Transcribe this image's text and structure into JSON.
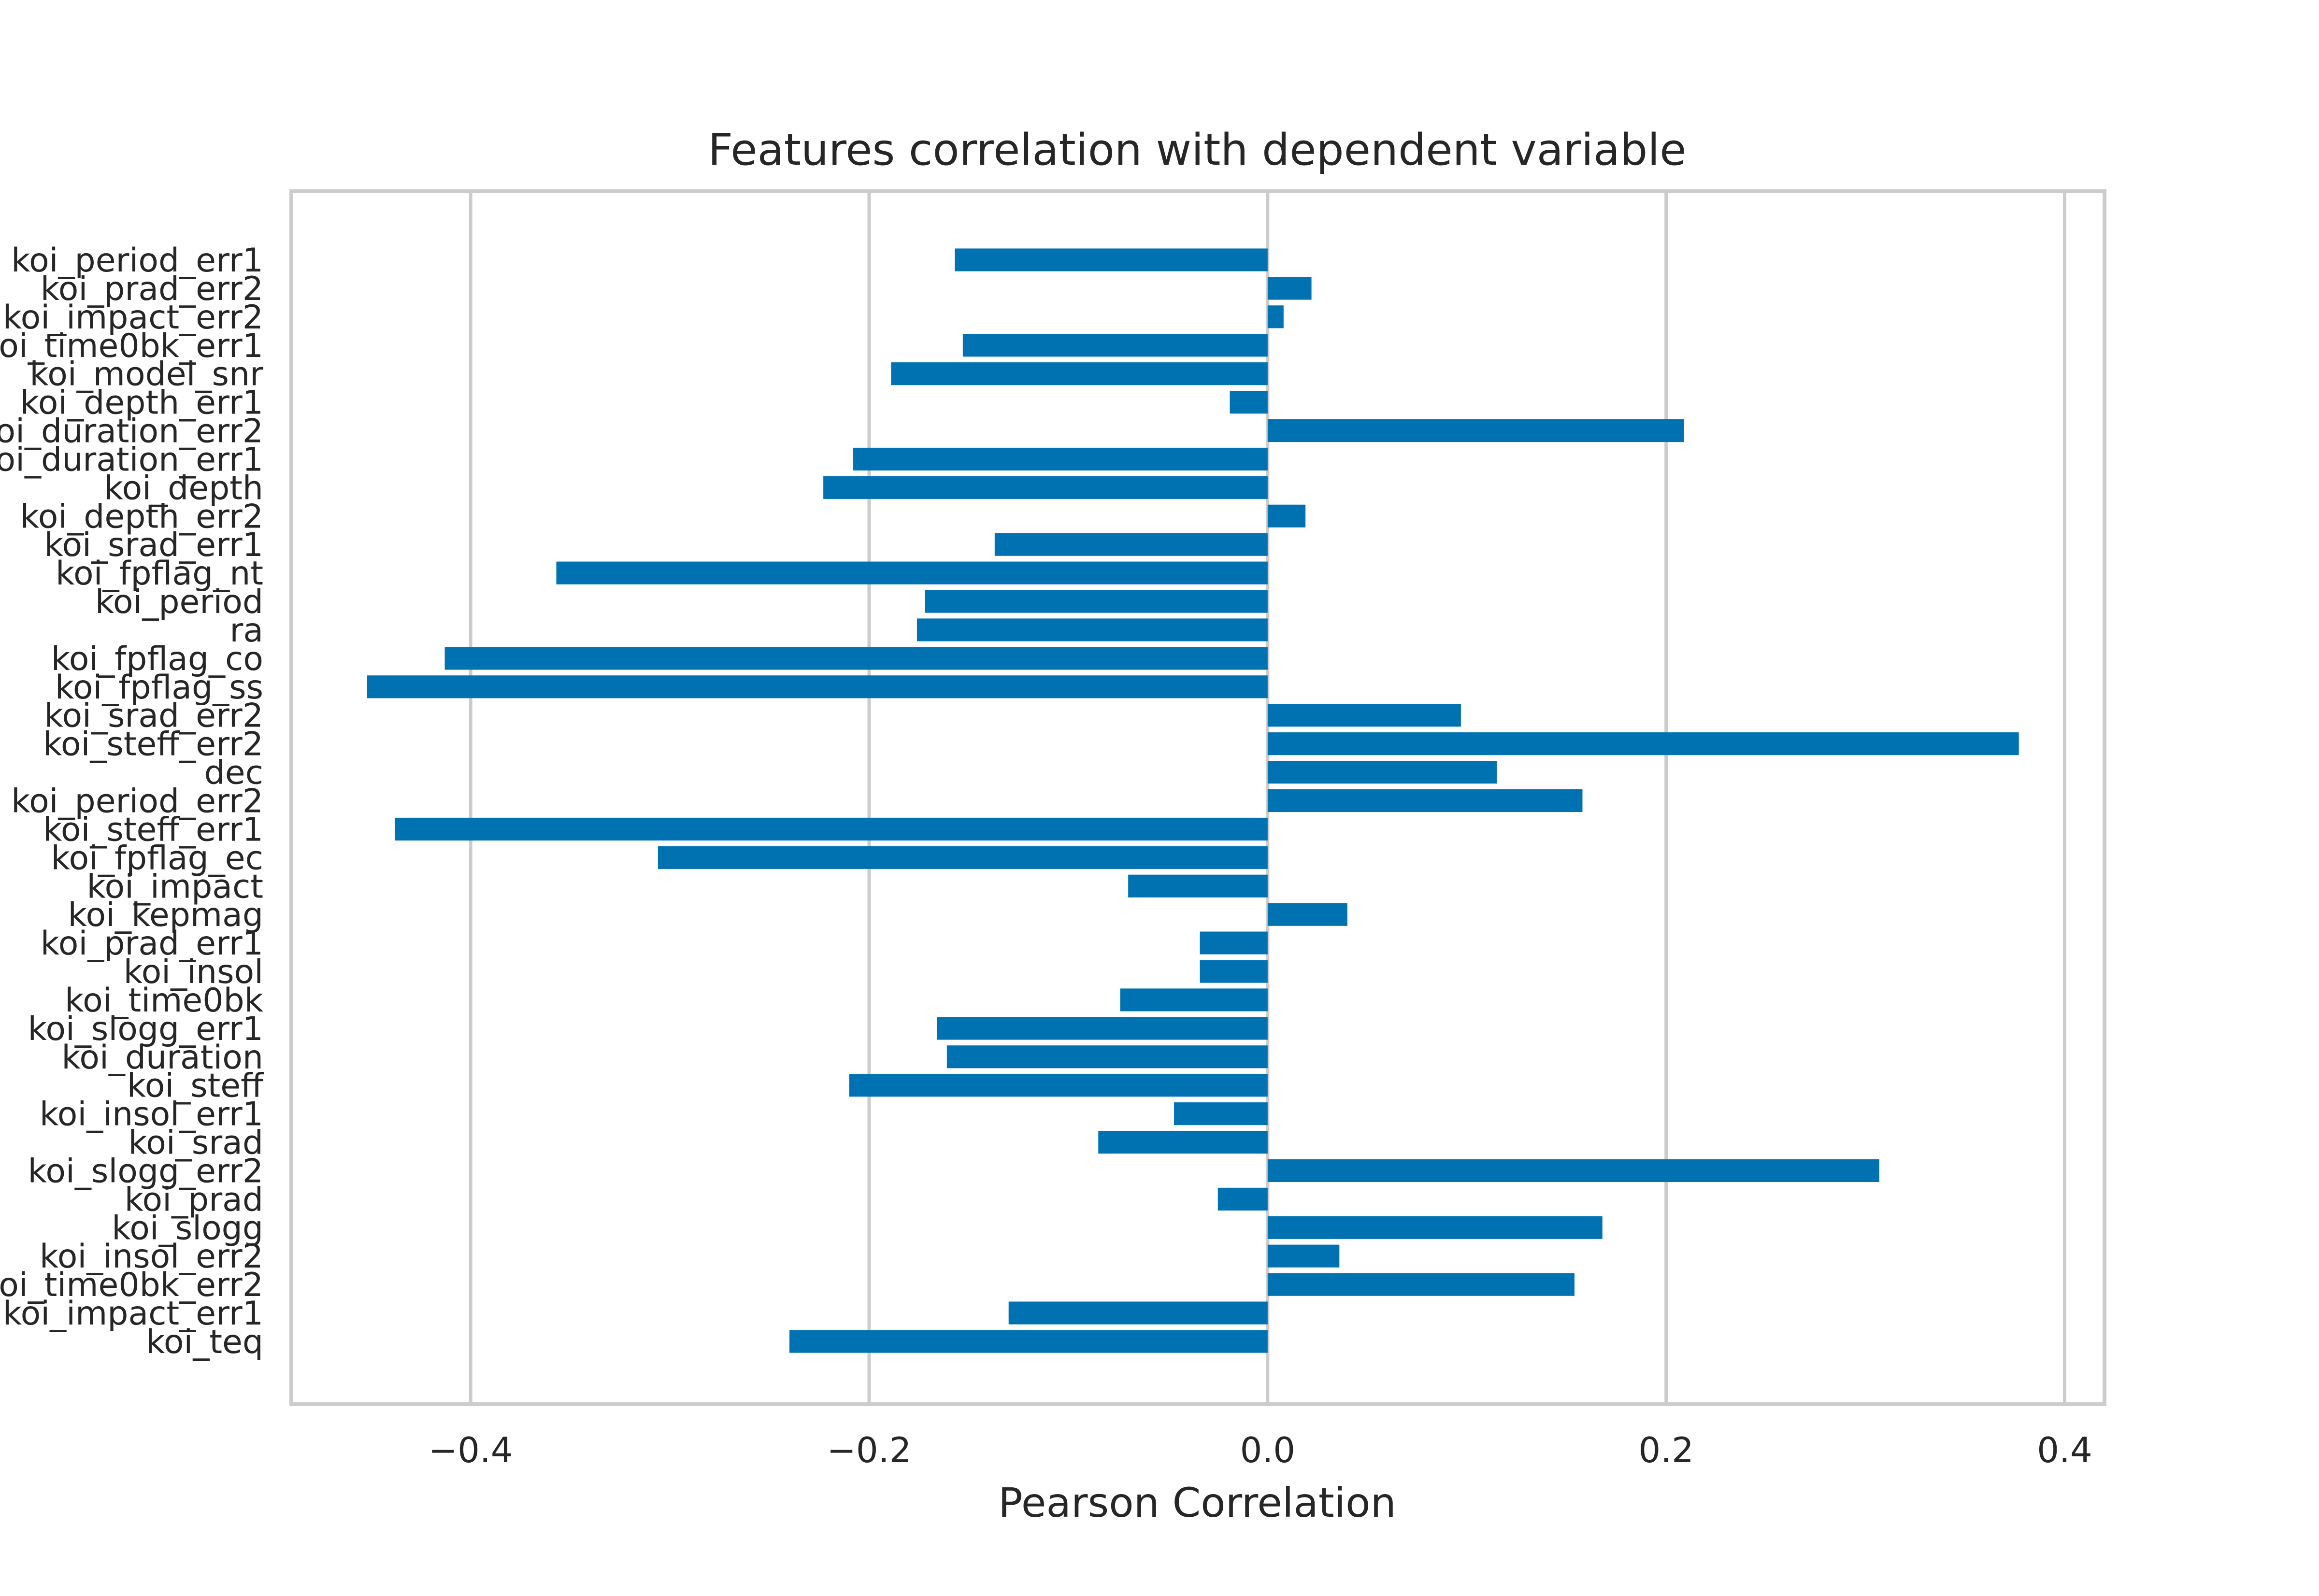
{
  "chart_data": {
    "type": "bar",
    "orientation": "horizontal",
    "title": "Features correlation with dependent variable",
    "xlabel": "Pearson Correlation",
    "ylabel": "",
    "xlim": [
      -0.49,
      0.42
    ],
    "xticks": [
      -0.4,
      -0.2,
      0.0,
      0.2,
      0.4
    ],
    "xtick_labels": [
      "−0.4",
      "−0.2",
      "0.0",
      "0.2",
      "0.4"
    ],
    "grid": true,
    "bar_color": "#0072b2",
    "categories": [
      "koi_period_err1",
      "koi_prad_err2",
      "koi_impact_err2",
      "koi_time0bk_err1",
      "koi_model_snr",
      "koi_depth_err1",
      "koi_duration_err2",
      "koi_duration_err1",
      "koi_depth",
      "koi_depth_err2",
      "koi_srad_err1",
      "koi_fpflag_nt",
      "koi_period",
      "ra",
      "koi_fpflag_co",
      "koi_fpflag_ss",
      "koi_srad_err2",
      "koi_steff_err2",
      "dec",
      "koi_period_err2",
      "koi_steff_err1",
      "koi_fpflag_ec",
      "koi_impact",
      "koi_kepmag",
      "koi_prad_err1",
      "koi_insol",
      "koi_time0bk",
      "koi_slogg_err1",
      "koi_duration",
      "koi_steff",
      "koi_insol_err1",
      "koi_srad",
      "koi_slogg_err2",
      "koi_prad",
      "koi_slogg",
      "koi_insol_err2",
      "koi_time0bk_err2",
      "koi_impact_err1",
      "koi_teq"
    ],
    "values": [
      -0.157,
      0.022,
      0.008,
      -0.153,
      -0.189,
      -0.019,
      0.209,
      -0.208,
      -0.223,
      0.019,
      -0.137,
      -0.357,
      -0.172,
      -0.176,
      -0.413,
      -0.452,
      0.097,
      0.377,
      0.115,
      0.158,
      -0.438,
      -0.306,
      -0.07,
      0.04,
      -0.034,
      -0.034,
      -0.074,
      -0.166,
      -0.161,
      -0.21,
      -0.047,
      -0.085,
      0.307,
      -0.025,
      0.168,
      0.036,
      0.154,
      -0.13,
      -0.24
    ]
  }
}
